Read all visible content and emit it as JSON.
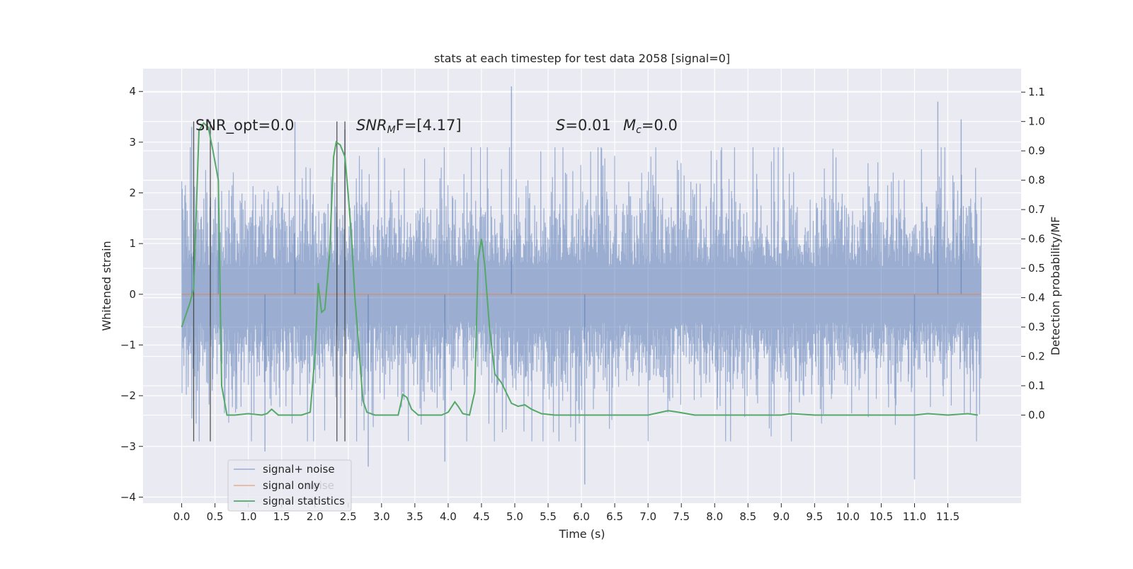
{
  "chart_data": {
    "type": "line",
    "title": "stats at each timestep for test data 2058 [signal=0]",
    "xlabel": "Time (s)",
    "ylabel_left": "Whitened strain",
    "ylabel_right": "Detection probability/MF",
    "xlim": [
      -0.58,
      12.6
    ],
    "ylim_left": [
      -4.12,
      4.45
    ],
    "ylim_right": [
      -0.3,
      1.18
    ],
    "grid": true,
    "xticks": [
      "0.0",
      "0.5",
      "1.0",
      "1.5",
      "2.0",
      "2.5",
      "3.0",
      "3.5",
      "4.0",
      "4.5",
      "5.0",
      "5.5",
      "6.0",
      "6.5",
      "7.0",
      "7.5",
      "8.0",
      "8.5",
      "9.0",
      "9.5",
      "10.0",
      "10.5",
      "11.0",
      "11.5"
    ],
    "yticks_left": [
      "4",
      "3",
      "2",
      "1",
      "0",
      "−1",
      "−2",
      "−3",
      "−4"
    ],
    "yticks_right": [
      "1.1",
      "1.0",
      "0.9",
      "0.8",
      "0.7",
      "0.6",
      "0.5",
      "0.4",
      "0.3",
      "0.2",
      "0.1",
      "0.0"
    ],
    "annotations": {
      "snr_opt": "SNR_opt=0.0",
      "snr_mf_main": "SNR",
      "snr_mf_sub": "M",
      "snr_mf_rest": "F=[4.17]",
      "s_main": "S",
      "s_rest": "=0.01",
      "mc_main": "M",
      "mc_sub": "c",
      "mc_rest": "=0.0"
    },
    "series": [
      {
        "name": "signal+ noise",
        "color": "#4c72b0",
        "description_hint": "whitened strain noise trace, dense band roughly between -1.5 and 1.5 with spikes reaching about +4.1 and -3.7",
        "x_range": [
          0.0,
          12.0
        ],
        "peaks_up": [
          [
            0.15,
            3.3
          ],
          [
            0.55,
            3.0
          ],
          [
            1.7,
            3.4
          ],
          [
            2.45,
            3.25
          ],
          [
            4.95,
            4.1
          ],
          [
            11.35,
            3.8
          ],
          [
            11.7,
            3.45
          ]
        ],
        "peaks_down": [
          [
            2.8,
            -3.4
          ],
          [
            6.05,
            -3.75
          ],
          [
            11.0,
            -3.65
          ],
          [
            3.95,
            -3.3
          ],
          [
            1.25,
            -3.1
          ]
        ]
      },
      {
        "name": "signal only",
        "color": "#dd8452",
        "x": [
          0.0,
          12.0
        ],
        "y": [
          0.0,
          0.0
        ]
      },
      {
        "name": "signal statistics",
        "color": "#55a868",
        "axis": "right",
        "x": [
          0.0,
          0.12,
          0.18,
          0.26,
          0.33,
          0.4,
          0.47,
          0.55,
          0.6,
          0.68,
          0.8,
          1.0,
          1.2,
          1.28,
          1.35,
          1.45,
          1.6,
          1.8,
          1.93,
          2.0,
          2.05,
          2.1,
          2.15,
          2.22,
          2.28,
          2.32,
          2.38,
          2.45,
          2.5,
          2.55,
          2.6,
          2.67,
          2.72,
          2.78,
          2.9,
          3.1,
          3.25,
          3.32,
          3.38,
          3.45,
          3.55,
          3.7,
          3.9,
          4.0,
          4.1,
          4.15,
          4.22,
          4.32,
          4.4,
          4.45,
          4.5,
          4.55,
          4.62,
          4.7,
          4.8,
          4.95,
          5.05,
          5.15,
          5.25,
          5.4,
          5.6,
          6.0,
          6.5,
          7.0,
          7.2,
          7.3,
          7.45,
          7.7,
          8.2,
          8.5,
          9.0,
          9.15,
          9.5,
          10.0,
          10.5,
          11.0,
          11.2,
          11.5,
          11.8,
          11.95
        ],
        "y": [
          0.3,
          0.38,
          0.43,
          0.97,
          0.995,
          0.98,
          0.9,
          0.8,
          0.1,
          0.0,
          0.0,
          0.005,
          0.0,
          0.005,
          0.02,
          0.0,
          0.0,
          0.0,
          0.01,
          0.2,
          0.45,
          0.35,
          0.36,
          0.55,
          0.88,
          0.93,
          0.92,
          0.88,
          0.75,
          0.6,
          0.4,
          0.2,
          0.05,
          0.01,
          0.0,
          0.0,
          0.0,
          0.07,
          0.06,
          0.02,
          0.0,
          0.0,
          0.0,
          0.01,
          0.045,
          0.03,
          0.005,
          0.0,
          0.08,
          0.53,
          0.6,
          0.51,
          0.3,
          0.14,
          0.11,
          0.04,
          0.03,
          0.035,
          0.02,
          0.005,
          0.0,
          0.0,
          0.0,
          0.0,
          0.01,
          0.015,
          0.01,
          0.0,
          0.0,
          0.0,
          0.0,
          0.005,
          0.0,
          0.0,
          0.0,
          0.0,
          0.005,
          0.0,
          0.005,
          0.0
        ]
      }
    ],
    "vertical_lines": [
      0.18,
      0.43,
      2.33,
      2.45
    ],
    "legend": {
      "position": "lower-left",
      "entries": [
        "signal+ noise",
        "signal only",
        "signal statistics"
      ]
    },
    "ghost_legend_text": "noise"
  }
}
